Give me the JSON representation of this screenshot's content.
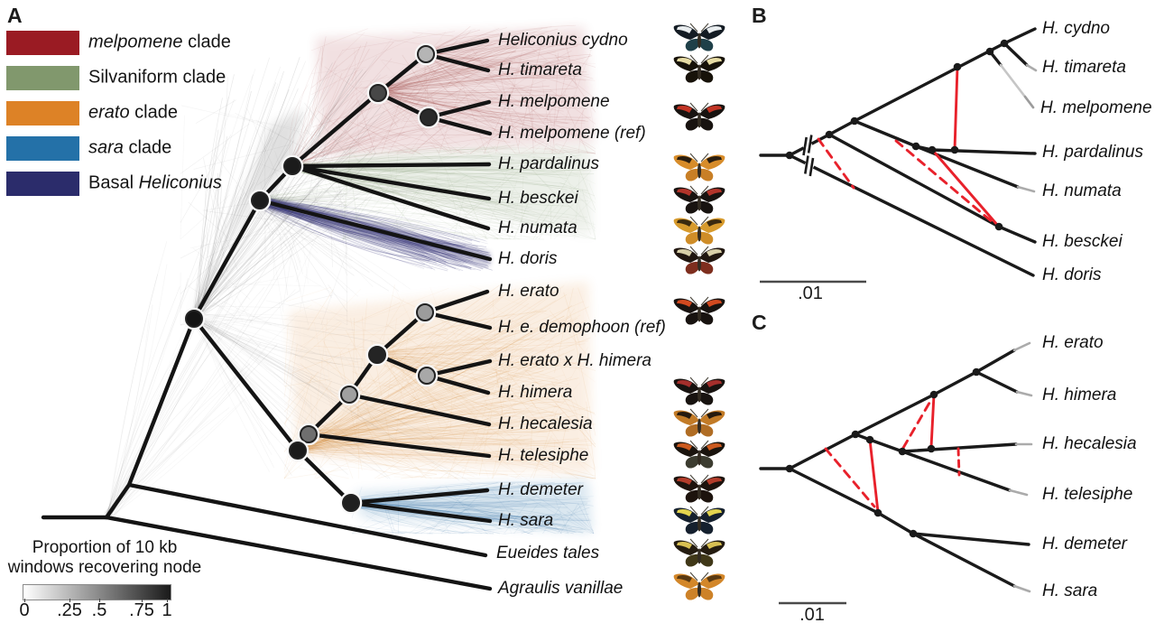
{
  "panels": {
    "a": "A",
    "b": "B",
    "c": "C"
  },
  "legend": {
    "items": [
      {
        "pre": "",
        "it": "melpomene",
        "post": " clade",
        "color": "#9A1B23"
      },
      {
        "pre": "Silvaniform clade",
        "it": "",
        "post": "",
        "color": "#81986D"
      },
      {
        "pre": "",
        "it": "erato",
        "post": " clade",
        "color": "#DD8226"
      },
      {
        "pre": "",
        "it": "sara",
        "post": " clade",
        "color": "#2471A8"
      },
      {
        "pre": "Basal ",
        "it": "Heliconius",
        "post": "",
        "color": "#2B2C6B"
      }
    ]
  },
  "colorbar": {
    "title_line1": "Proportion of 10 kb",
    "title_line2": "windows recovering node",
    "ticks": [
      "0",
      ".25",
      ".5",
      ".75",
      "1"
    ],
    "gradient_from": "#ffffff",
    "gradient_to": "#1a1a1a"
  },
  "panelA": {
    "taxa": [
      "Heliconius cydno",
      "H. timareta",
      "H. melpomene",
      "H. melpomene (ref)",
      "H. pardalinus",
      "H. besckei",
      "H. numata",
      "H. doris",
      "H. erato",
      "H. e. demophoon (ref)",
      "H. erato x H. himera",
      "H. himera",
      "H. hecalesia",
      "H. telesiphe",
      "H. demeter",
      "H. sara",
      "Eueides tales",
      "Agraulis vanillae"
    ],
    "node_shades": [
      "#b5b5b5",
      "#474747",
      "#2a2a2a",
      "#1b1b1b",
      "#1b1b1b",
      "#141414",
      "#9c9c9c",
      "#242424",
      "#a8a8a8",
      "#a0a0a0",
      "#6f6f6f",
      "#1b1b1b",
      "#1f1f1f"
    ]
  },
  "panelB": {
    "taxa": [
      "H. cydno",
      "H. timareta",
      "H. melpomene",
      "H. pardalinus",
      "H. numata",
      "H. besckei",
      "H. doris"
    ],
    "scale_label": ".01"
  },
  "panelC": {
    "taxa": [
      "H. erato",
      "H. himera",
      "H. hecalesia",
      "H. telesiphe",
      "H. demeter",
      "H. sara"
    ],
    "scale_label": ".01"
  },
  "colors": {
    "branch_black": "#141414",
    "introgression_red": "#E8212B",
    "faded_tip_gray": "#ABABAB",
    "cloud_melpomene": "#9A1B23",
    "cloud_silvaniform": "#81986D",
    "cloud_erato": "#DD8226",
    "cloud_sara": "#2471A8",
    "cloud_basal": "#3C3A78"
  },
  "butterflies": [
    {
      "species": "Heliconius cydno",
      "wing": "#141C24",
      "band": "#E9EDEF",
      "hind": "#1F4049"
    },
    {
      "species": "H. timareta",
      "wing": "#171209",
      "band": "#E7DCA4",
      "hind": "#171209"
    },
    {
      "species": "H. melpomene",
      "wing": "#181310",
      "band": "#C23424",
      "hind": "#181310"
    },
    {
      "species": "H. pardalinus",
      "wing": "#D78C2A",
      "band": "#2A1E10",
      "hind": "#C87F26"
    },
    {
      "species": "H. besckei",
      "wing": "#181310",
      "band": "#B2342A",
      "hind": "#181310"
    },
    {
      "species": "H. numata",
      "wing": "#D79A2C",
      "band": "#3A2A10",
      "hind": "#CF8D28"
    },
    {
      "species": "H. doris",
      "wing": "#201610",
      "band": "#D8CFA8",
      "hind": "#7E2E1E"
    },
    {
      "species": "H. erato demophoon",
      "wing": "#181310",
      "band": "#D2491F",
      "hind": "#181310"
    },
    {
      "species": "H. himera",
      "wing": "#181310",
      "band": "#A52F2C",
      "hind": "#181310"
    },
    {
      "species": "H. hecalesia",
      "wing": "#C27B27",
      "band": "#251A0E",
      "hind": "#B06D24"
    },
    {
      "species": "H. telesiphe",
      "wing": "#1A140E",
      "band": "#CC5A1F",
      "hind": "#3C3C30"
    },
    {
      "species": "H. demeter",
      "wing": "#1D130D",
      "band": "#B23C2A",
      "hind": "#1D130D"
    },
    {
      "species": "H. sara",
      "wing": "#15202E",
      "band": "#E3D44E",
      "hind": "#15202E"
    },
    {
      "species": "Eueides tales",
      "wing": "#241C10",
      "band": "#D8C052",
      "hind": "#403818"
    },
    {
      "species": "Agraulis vanillae",
      "wing": "#D3872A",
      "band": "#5A3A12",
      "hind": "#CD8228"
    }
  ]
}
